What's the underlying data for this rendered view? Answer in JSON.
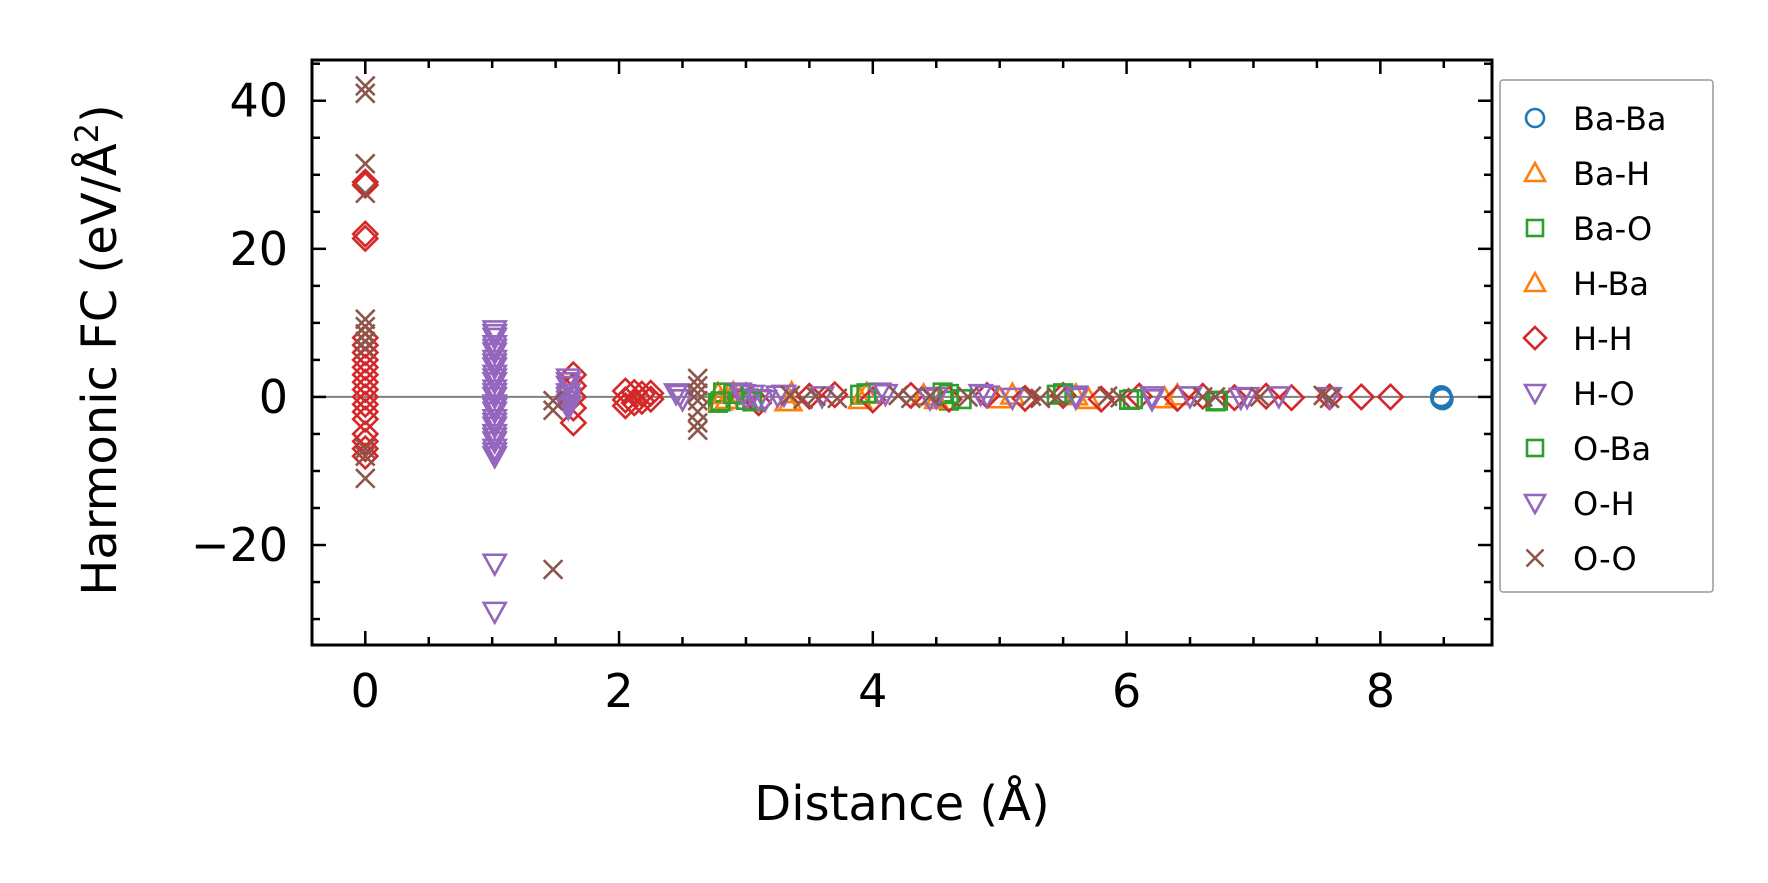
{
  "chart_data": {
    "type": "scatter",
    "xlabel": "Distance (Å)",
    "ylabel_main": "Harmonic FC (eV/Å",
    "ylabel_sup": "2",
    "ylabel_close": ")",
    "xlim": [
      -0.42,
      8.88
    ],
    "ylim": [
      -33.5,
      45.5
    ],
    "xticks": [
      0,
      2,
      4,
      6,
      8
    ],
    "xtick_labels": [
      "0",
      "2",
      "4",
      "6",
      "8"
    ],
    "yticks": [
      -20,
      0,
      20,
      40
    ],
    "ytick_labels": [
      "−20",
      "0",
      "20",
      "40"
    ],
    "grid": false,
    "zero_line": 0,
    "legend_position": "outside-right",
    "series": [
      {
        "name": "Ba-Ba",
        "marker": "circle",
        "color": "#1f77b4",
        "points": [
          [
            8.48,
            0.1
          ],
          [
            8.48,
            -0.2
          ],
          [
            8.49,
            -0.3
          ]
        ]
      },
      {
        "name": "Ba-H",
        "marker": "triangle-up",
        "color": "#ff7f0e",
        "points": [
          [
            2.78,
            0.4
          ],
          [
            2.85,
            -0.3
          ],
          [
            3.32,
            -0.6
          ],
          [
            3.36,
            0.5
          ],
          [
            3.9,
            -0.3
          ],
          [
            4.4,
            0.2
          ],
          [
            5.0,
            -0.2
          ],
          [
            5.6,
            0.2
          ],
          [
            6.3,
            -0.2
          ]
        ]
      },
      {
        "name": "Ba-O",
        "marker": "square",
        "color": "#2ca02c",
        "points": [
          [
            2.78,
            -0.8
          ],
          [
            2.82,
            0.6
          ],
          [
            3.0,
            -0.4
          ],
          [
            3.9,
            0.3
          ],
          [
            4.55,
            0.6
          ],
          [
            4.6,
            -0.5
          ],
          [
            5.45,
            0.3
          ],
          [
            6.02,
            -0.4
          ],
          [
            6.7,
            -0.6
          ]
        ]
      },
      {
        "name": "H-Ba",
        "marker": "triangle-up",
        "color": "#ff7f0e",
        "points": [
          [
            2.8,
            -0.5
          ],
          [
            2.9,
            0.5
          ],
          [
            3.35,
            -0.6
          ],
          [
            3.95,
            0.4
          ],
          [
            4.5,
            -0.3
          ],
          [
            5.1,
            0.3
          ],
          [
            5.7,
            -0.3
          ],
          [
            6.4,
            0.2
          ]
        ]
      },
      {
        "name": "H-H",
        "marker": "diamond",
        "color": "#d62728",
        "points": [
          [
            0,
            29
          ],
          [
            0,
            28.6
          ],
          [
            0,
            22
          ],
          [
            0,
            21.4
          ],
          [
            0,
            8
          ],
          [
            0,
            7
          ],
          [
            0,
            6
          ],
          [
            0,
            5
          ],
          [
            0,
            4
          ],
          [
            0,
            3
          ],
          [
            0,
            2
          ],
          [
            0,
            1
          ],
          [
            0,
            0
          ],
          [
            0,
            -1
          ],
          [
            0,
            -2
          ],
          [
            0,
            -3
          ],
          [
            0,
            -5
          ],
          [
            0,
            -6
          ],
          [
            0,
            -7
          ],
          [
            0,
            -8
          ],
          [
            1.64,
            3
          ],
          [
            1.64,
            1.5
          ],
          [
            1.64,
            0
          ],
          [
            1.64,
            -1.5
          ],
          [
            1.64,
            -3.5
          ],
          [
            2.05,
            0.8
          ],
          [
            2.05,
            -0.4
          ],
          [
            2.05,
            -1.2
          ],
          [
            2.12,
            0.6
          ],
          [
            2.12,
            -0.8
          ],
          [
            2.18,
            0.4
          ],
          [
            2.18,
            -0.6
          ],
          [
            2.25,
            0.5
          ],
          [
            2.25,
            -0.3
          ],
          [
            3.0,
            0.2
          ],
          [
            3.1,
            -0.8
          ],
          [
            3.5,
            0.1
          ],
          [
            3.7,
            0.3
          ],
          [
            4.0,
            -0.4
          ],
          [
            4.3,
            0.2
          ],
          [
            4.6,
            -0.3
          ],
          [
            4.9,
            0.2
          ],
          [
            5.2,
            -0.2
          ],
          [
            5.5,
            0.2
          ],
          [
            5.8,
            -0.3
          ],
          [
            6.1,
            0.1
          ],
          [
            6.4,
            -0.2
          ],
          [
            6.6,
            0.1
          ],
          [
            6.85,
            -0.1
          ],
          [
            7.1,
            0.1
          ],
          [
            7.3,
            -0.1
          ],
          [
            7.6,
            0.0
          ],
          [
            7.85,
            0.0
          ],
          [
            8.08,
            0.0
          ]
        ]
      },
      {
        "name": "H-O",
        "marker": "triangle-down",
        "color": "#9467bd",
        "points": [
          [
            1.02,
            9
          ],
          [
            1.02,
            8
          ],
          [
            1.02,
            7
          ],
          [
            1.02,
            6
          ],
          [
            1.02,
            5
          ],
          [
            1.02,
            4
          ],
          [
            1.02,
            3
          ],
          [
            1.02,
            2
          ],
          [
            1.02,
            1
          ],
          [
            1.02,
            0
          ],
          [
            1.02,
            -1
          ],
          [
            1.02,
            -2
          ],
          [
            1.02,
            -3
          ],
          [
            1.02,
            -4
          ],
          [
            1.02,
            -5
          ],
          [
            1.02,
            -6
          ],
          [
            1.02,
            -7
          ],
          [
            1.02,
            -8
          ],
          [
            1.02,
            -22.5
          ],
          [
            1.02,
            -29
          ],
          [
            1.6,
            2.5
          ],
          [
            1.6,
            1.5
          ],
          [
            1.6,
            0.5
          ],
          [
            1.6,
            -0.5
          ],
          [
            1.6,
            -1.5
          ],
          [
            2.45,
            0.5
          ],
          [
            2.5,
            -0.3
          ],
          [
            2.95,
            0.6
          ],
          [
            3.0,
            -0.2
          ],
          [
            3.05,
            0.3
          ],
          [
            3.15,
            -0.4
          ],
          [
            3.25,
            0.2
          ],
          [
            3.6,
            0.1
          ],
          [
            4.05,
            0.6
          ],
          [
            4.45,
            -0.2
          ],
          [
            4.85,
            0.4
          ],
          [
            5.1,
            -0.1
          ],
          [
            5.6,
            0.2
          ],
          [
            6.2,
            -0.3
          ],
          [
            6.5,
            0.1
          ],
          [
            6.9,
            -0.1
          ],
          [
            7.2,
            0.1
          ],
          [
            7.6,
            0.0
          ]
        ]
      },
      {
        "name": "O-Ba",
        "marker": "square",
        "color": "#2ca02c",
        "points": [
          [
            2.8,
            -0.6
          ],
          [
            2.9,
            0.4
          ],
          [
            3.05,
            -0.6
          ],
          [
            3.95,
            0.5
          ],
          [
            4.6,
            0.4
          ],
          [
            4.7,
            -0.3
          ],
          [
            5.5,
            0.5
          ],
          [
            6.05,
            -0.3
          ],
          [
            6.72,
            -0.5
          ]
        ]
      },
      {
        "name": "O-H",
        "marker": "triangle-down",
        "color": "#9467bd",
        "points": [
          [
            1.02,
            8.5
          ],
          [
            1.02,
            6.5
          ],
          [
            1.02,
            4.5
          ],
          [
            1.02,
            2.5
          ],
          [
            1.02,
            0.5
          ],
          [
            1.02,
            -1.5
          ],
          [
            1.02,
            -3.5
          ],
          [
            1.02,
            -5.5
          ],
          [
            1.02,
            -7.5
          ],
          [
            1.6,
            2
          ],
          [
            1.6,
            0
          ],
          [
            1.6,
            -1
          ],
          [
            2.48,
            0.3
          ],
          [
            2.98,
            0.4
          ],
          [
            3.1,
            -0.3
          ],
          [
            3.3,
            0.3
          ],
          [
            4.1,
            0.4
          ],
          [
            4.5,
            0.0
          ],
          [
            4.9,
            0.2
          ],
          [
            5.6,
            -0.1
          ],
          [
            6.2,
            0.1
          ],
          [
            6.95,
            0.0
          ]
        ]
      },
      {
        "name": "O-O",
        "marker": "x",
        "color": "#8c564b",
        "points": [
          [
            0,
            42
          ],
          [
            0,
            41
          ],
          [
            0,
            31.5
          ],
          [
            0,
            27.5
          ],
          [
            0,
            10.5
          ],
          [
            0,
            9.5
          ],
          [
            0,
            8.5
          ],
          [
            0,
            7.5
          ],
          [
            0,
            6.5
          ],
          [
            0,
            -7
          ],
          [
            0,
            -8
          ],
          [
            0,
            -11
          ],
          [
            1.48,
            -0.5
          ],
          [
            1.48,
            -1.8
          ],
          [
            1.48,
            -23.3
          ],
          [
            2.62,
            2.5
          ],
          [
            2.62,
            1.5
          ],
          [
            2.62,
            0.5
          ],
          [
            2.62,
            -0.5
          ],
          [
            2.62,
            -2
          ],
          [
            2.62,
            -3.5
          ],
          [
            2.62,
            -4.5
          ],
          [
            3.35,
            0.2
          ],
          [
            3.45,
            -0.3
          ],
          [
            3.55,
            0.1
          ],
          [
            3.72,
            -0.2
          ],
          [
            4.2,
            0.2
          ],
          [
            4.3,
            -0.2
          ],
          [
            4.45,
            0.1
          ],
          [
            4.75,
            0.0
          ],
          [
            5.25,
            0.1
          ],
          [
            5.32,
            -0.2
          ],
          [
            5.45,
            0.0
          ],
          [
            5.85,
            0.1
          ],
          [
            5.95,
            -0.1
          ],
          [
            6.6,
            0.0
          ],
          [
            6.7,
            0.0
          ],
          [
            7.05,
            0.0
          ],
          [
            7.55,
            0.2
          ],
          [
            7.6,
            -0.2
          ]
        ]
      }
    ]
  }
}
